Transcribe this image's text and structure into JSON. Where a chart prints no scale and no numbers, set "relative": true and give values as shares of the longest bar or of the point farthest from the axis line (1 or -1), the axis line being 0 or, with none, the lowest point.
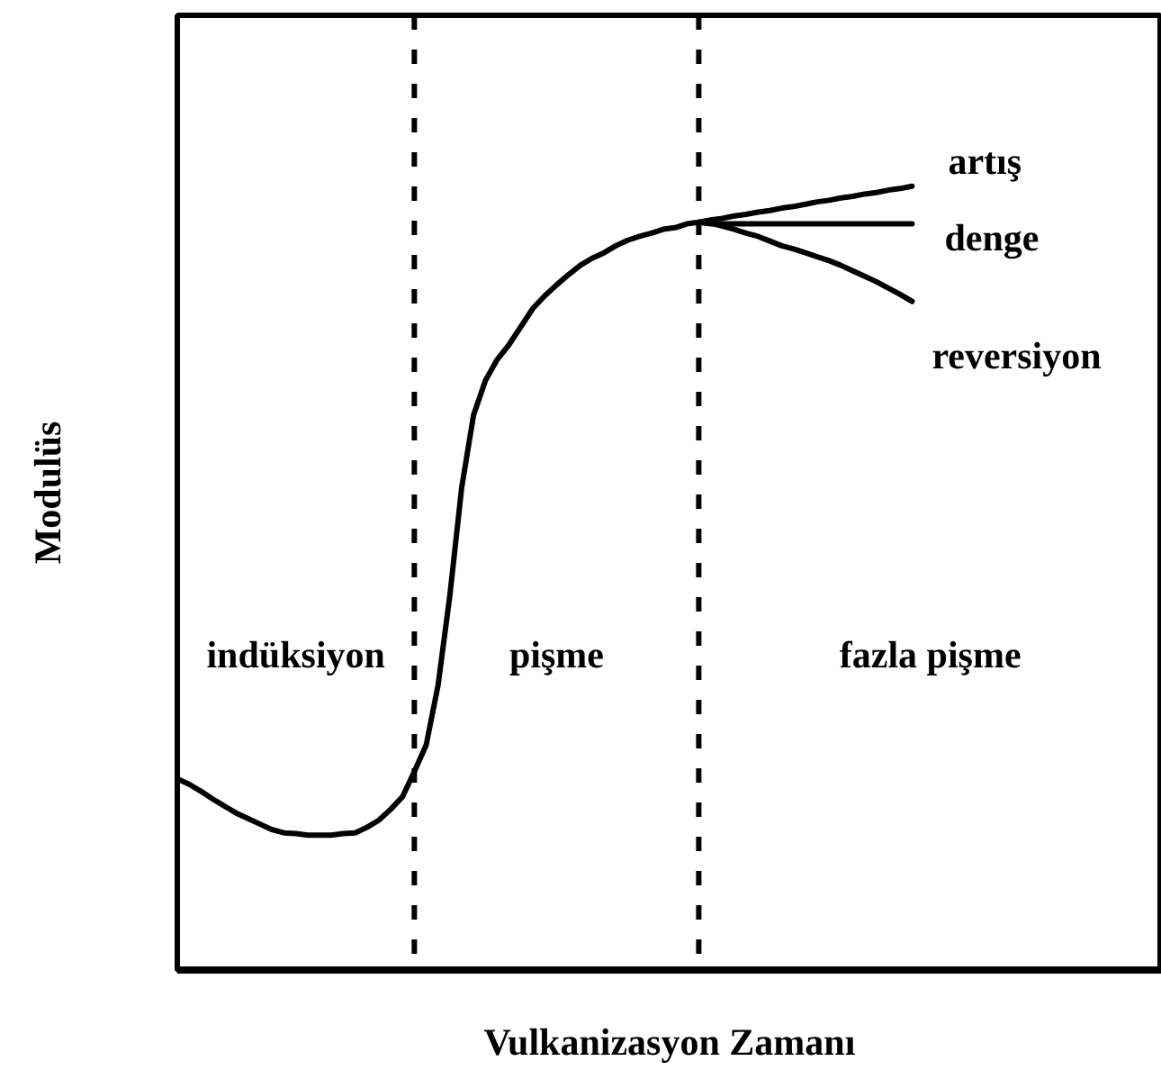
{
  "chart_data": {
    "type": "line",
    "relative": true,
    "xlabel": "Vulkanizasyon Zamanı",
    "ylabel": "Modulüs",
    "line_style": "solid",
    "marker": "none",
    "categories": [
      null,
      null,
      null,
      null,
      null,
      null,
      null,
      null,
      null,
      null,
      null,
      null,
      null,
      null,
      null,
      null,
      null,
      null,
      null,
      null,
      null,
      null,
      null,
      null,
      null,
      null,
      null,
      null,
      null,
      null,
      null,
      null,
      null,
      null,
      null,
      null,
      null,
      null,
      null,
      null,
      null,
      null,
      null,
      null,
      null,
      null,
      null,
      null,
      null,
      null,
      null,
      null,
      null,
      null,
      null,
      null,
      null,
      null,
      null,
      null,
      null,
      null,
      null
    ],
    "series": [
      {
        "name": "artış",
        "color": "#000000",
        "values": [
          0.244,
          0.237,
          0.228,
          0.218,
          0.209,
          0.2,
          0.193,
          0.186,
          0.179,
          0.175,
          0.174,
          0.172,
          0.172,
          0.172,
          0.174,
          0.175,
          0.182,
          0.191,
          0.205,
          0.221,
          0.253,
          0.287,
          0.363,
          0.478,
          0.616,
          0.708,
          0.752,
          0.779,
          0.798,
          0.821,
          0.844,
          0.86,
          0.874,
          0.887,
          0.899,
          0.908,
          0.915,
          0.924,
          0.931,
          0.936,
          0.94,
          0.945,
          0.947,
          0.952,
          0.954,
          0.957,
          0.959,
          0.962,
          0.964,
          0.967,
          0.969,
          0.972,
          0.974,
          0.977,
          0.98,
          0.982,
          0.985,
          0.987,
          0.99,
          0.992,
          0.995,
          0.997,
          1.0
        ]
      },
      {
        "name": "denge",
        "color": "#000000",
        "values": [
          null,
          null,
          null,
          null,
          null,
          null,
          null,
          null,
          null,
          null,
          null,
          null,
          null,
          null,
          null,
          null,
          null,
          null,
          null,
          null,
          null,
          null,
          null,
          null,
          null,
          null,
          null,
          null,
          null,
          null,
          null,
          null,
          null,
          null,
          null,
          null,
          null,
          null,
          null,
          null,
          null,
          null,
          null,
          null,
          0.954,
          0.952,
          0.952,
          0.952,
          0.952,
          0.952,
          0.952,
          0.952,
          0.952,
          0.952,
          0.952,
          0.952,
          0.952,
          0.952,
          0.952,
          0.952,
          0.952,
          0.952,
          0.952
        ]
      },
      {
        "name": "reversiyon",
        "color": "#000000",
        "values": [
          null,
          null,
          null,
          null,
          null,
          null,
          null,
          null,
          null,
          null,
          null,
          null,
          null,
          null,
          null,
          null,
          null,
          null,
          null,
          null,
          null,
          null,
          null,
          null,
          null,
          null,
          null,
          null,
          null,
          null,
          null,
          null,
          null,
          null,
          null,
          null,
          null,
          null,
          null,
          null,
          null,
          null,
          null,
          null,
          0.954,
          0.953,
          0.949,
          0.945,
          0.94,
          0.936,
          0.93,
          0.924,
          0.92,
          0.915,
          0.91,
          0.905,
          0.899,
          0.892,
          0.885,
          0.878,
          0.87,
          0.862,
          0.853
        ]
      }
    ],
    "annotations": [
      "indüksiyon",
      "pişme",
      "fazla pişme"
    ]
  }
}
